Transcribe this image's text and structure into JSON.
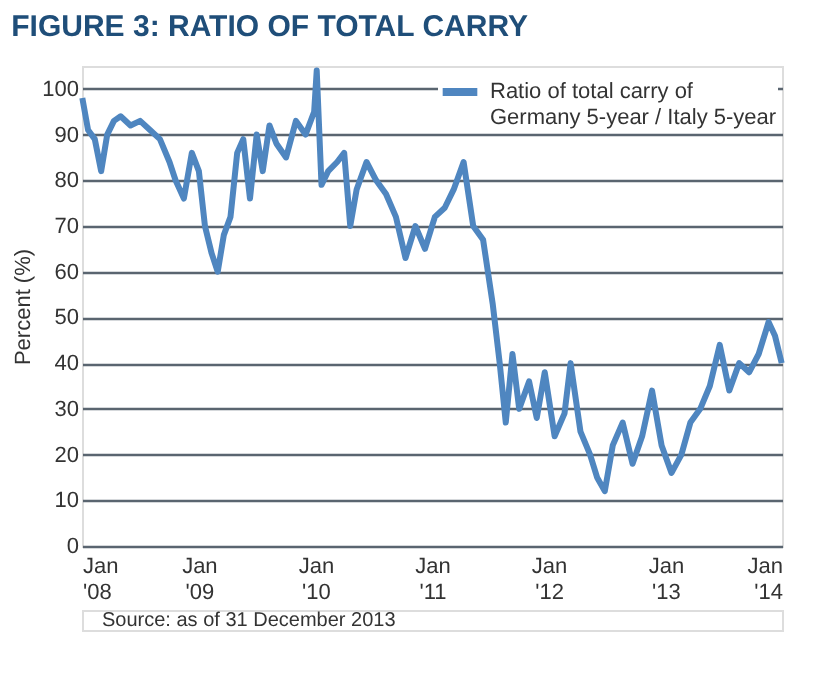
{
  "chart_data": {
    "type": "line",
    "title": "FIGURE 3:  RATIO OF TOTAL CARRY",
    "ylabel": "Percent (%)",
    "annotations": [
      "Source: as of 31 December 2013"
    ],
    "x": [
      "2008-01-02",
      "2008-01-20",
      "2008-02-10",
      "2008-03-01",
      "2008-03-20",
      "2008-04-10",
      "2008-05-01",
      "2008-06-01",
      "2008-07-01",
      "2008-08-01",
      "2008-09-01",
      "2008-10-01",
      "2008-10-20",
      "2008-11-15",
      "2008-12-10",
      "2009-01-01",
      "2009-01-20",
      "2009-02-10",
      "2009-03-01",
      "2009-03-20",
      "2009-04-10",
      "2009-05-01",
      "2009-05-20",
      "2009-06-10",
      "2009-07-01",
      "2009-07-20",
      "2009-08-10",
      "2009-09-01",
      "2009-10-01",
      "2009-11-01",
      "2009-12-01",
      "2009-12-28",
      "2010-01-05",
      "2010-01-20",
      "2010-02-10",
      "2010-03-10",
      "2010-04-01",
      "2010-04-20",
      "2010-05-10",
      "2010-06-10",
      "2010-07-10",
      "2010-08-10",
      "2010-09-10",
      "2010-10-10",
      "2010-11-10",
      "2010-12-10",
      "2011-01-10",
      "2011-02-10",
      "2011-03-10",
      "2011-04-10",
      "2011-05-10",
      "2011-06-10",
      "2011-07-10",
      "2011-08-01",
      "2011-08-20",
      "2011-09-10",
      "2011-10-01",
      "2011-11-01",
      "2011-11-25",
      "2011-12-20",
      "2012-01-20",
      "2012-02-20",
      "2012-03-10",
      "2012-04-10",
      "2012-05-10",
      "2012-06-01",
      "2012-06-25",
      "2012-07-20",
      "2012-08-20",
      "2012-09-20",
      "2012-10-20",
      "2012-11-20",
      "2012-12-20",
      "2013-01-20",
      "2013-02-20",
      "2013-03-20",
      "2013-04-20",
      "2013-05-20",
      "2013-06-20",
      "2013-07-20",
      "2013-08-20",
      "2013-09-20",
      "2013-10-20",
      "2013-11-20",
      "2013-12-10",
      "2013-12-31"
    ],
    "series": [
      {
        "name": "Ratio of total carry of\nGermany 5-year / Italy 5-year",
        "color": "#4f86c0",
        "values": [
          98,
          91,
          89,
          82,
          90,
          93,
          94,
          92,
          93,
          91,
          89,
          84,
          80,
          76,
          86,
          82,
          70,
          64,
          60,
          68,
          72,
          86,
          89,
          76,
          90,
          82,
          92,
          88,
          85,
          93,
          90,
          95,
          104,
          79,
          82,
          84,
          86,
          70,
          78,
          84,
          80,
          77,
          72,
          63,
          70,
          65,
          72,
          74,
          78,
          84,
          70,
          67,
          53,
          40,
          27,
          42,
          30,
          36,
          28,
          38,
          24,
          29,
          40,
          25,
          20,
          15,
          12,
          22,
          27,
          18,
          24,
          34,
          22,
          16,
          20,
          27,
          30,
          35,
          44,
          34,
          40,
          38,
          42,
          49,
          46,
          40
        ]
      }
    ],
    "ylim": [
      0,
      105
    ],
    "yticks": [
      0,
      10,
      20,
      30,
      40,
      50,
      60,
      70,
      80,
      90,
      100
    ],
    "xlim": [
      "2008-01-01",
      "2014-01-01"
    ],
    "xticks": [
      {
        "value": "2008-01-01",
        "label": "Jan\n'08"
      },
      {
        "value": "2009-01-01",
        "label": "Jan\n'09"
      },
      {
        "value": "2010-01-01",
        "label": "Jan\n'10"
      },
      {
        "value": "2011-01-01",
        "label": "Jan\n'11"
      },
      {
        "value": "2012-01-01",
        "label": "Jan\n'12"
      },
      {
        "value": "2013-01-01",
        "label": "Jan\n'13"
      },
      {
        "value": "2014-01-01",
        "label": "Jan\n'14"
      }
    ],
    "grid": "y",
    "legend": "top right"
  }
}
